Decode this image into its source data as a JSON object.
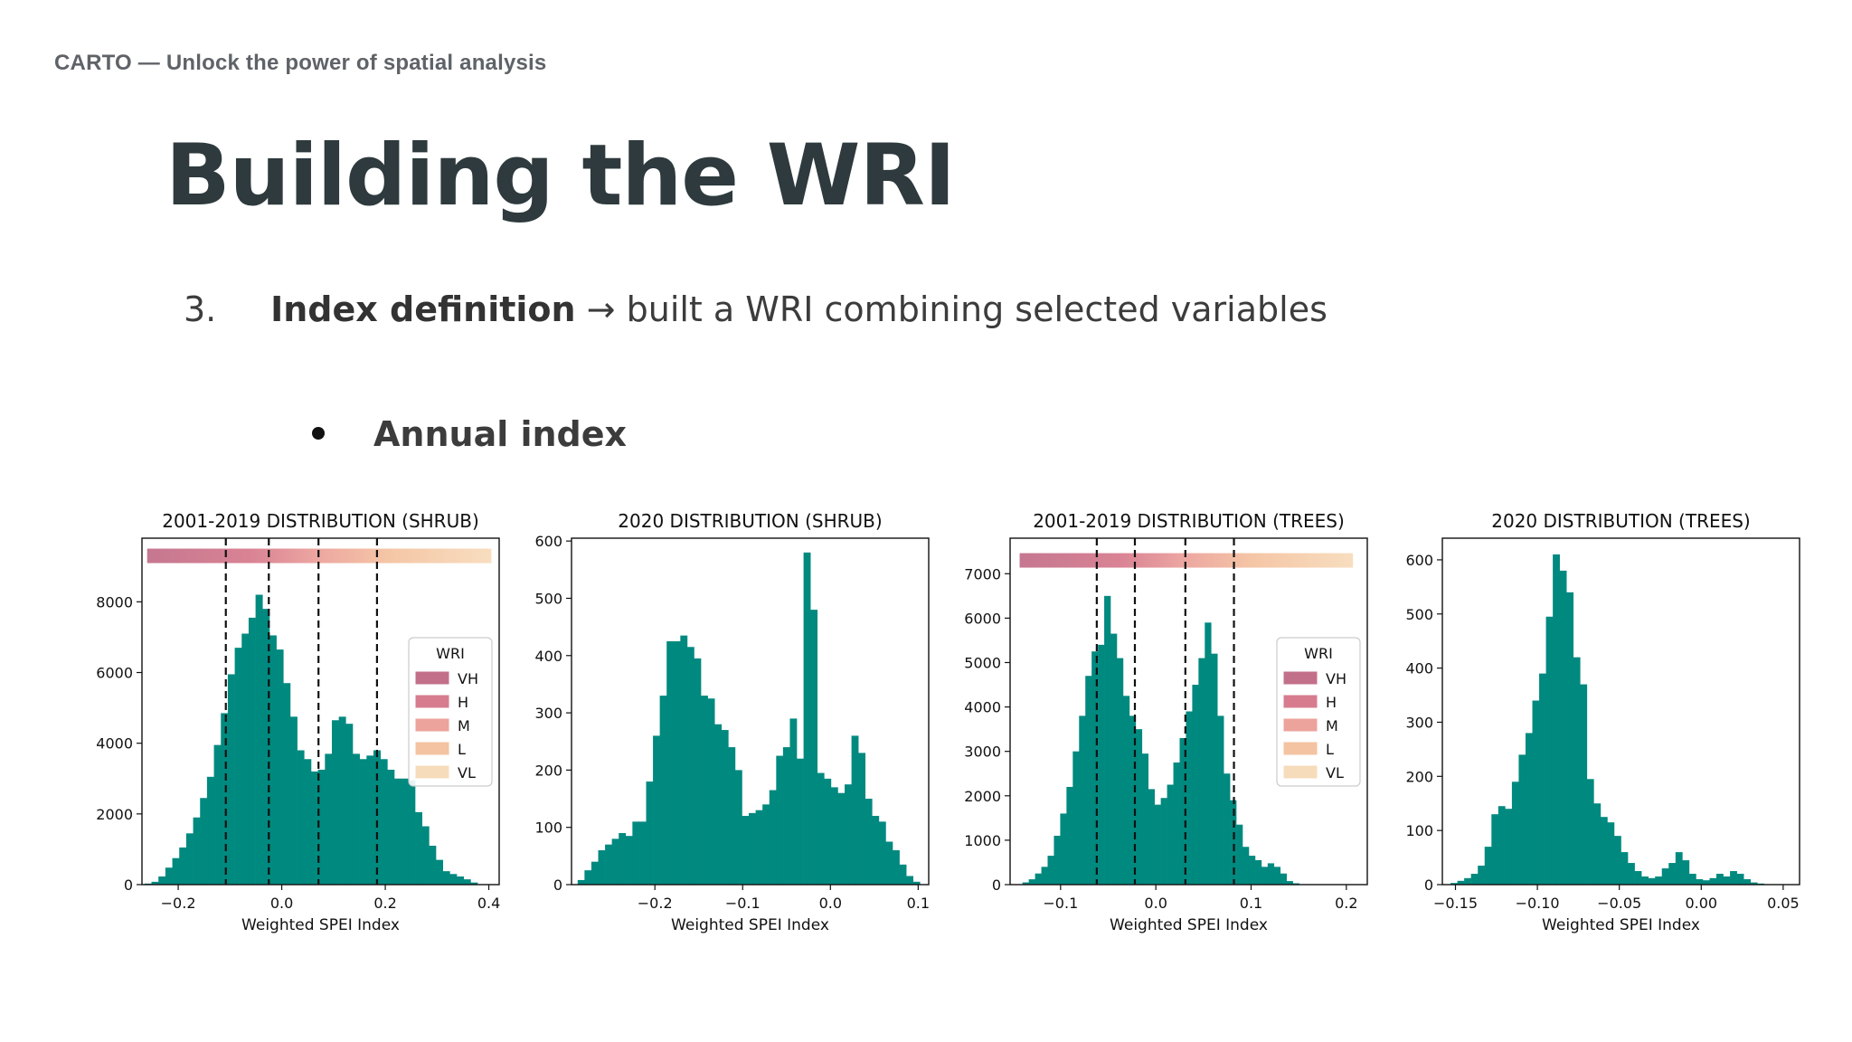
{
  "header": "CARTO — Unlock the power of spatial analysis",
  "slide": {
    "title": "Building the WRI",
    "item_number": "3.",
    "item_bold": "Index definition",
    "item_arrow": "→",
    "item_text": "built a WRI combining selected variables",
    "bullet": "Annual index"
  },
  "colors": {
    "bar": "#00897f",
    "VH": "#c2708a",
    "H": "#d77c8f",
    "M": "#eca39c",
    "L": "#f4c3a1",
    "VL": "#f7dcbc"
  },
  "chart_data": [
    {
      "type": "bar",
      "title": "2001-2019 DISTRIBUTION (SHRUB)",
      "xlabel": "Weighted SPEI Index",
      "ylabel": "",
      "xlim": [
        -0.27,
        0.42
      ],
      "ylim": [
        0,
        9800
      ],
      "xticks": [
        -0.2,
        0.0,
        0.2,
        0.4
      ],
      "xtick_labels": [
        "−0.2",
        "0.0",
        "0.2",
        "0.4"
      ],
      "yticks": [
        0,
        2000,
        4000,
        6000,
        8000
      ],
      "ytick_labels": [
        "0",
        "2000",
        "4000",
        "6000",
        "8000"
      ],
      "bin_start": -0.265,
      "bin_width": 0.0134,
      "values": [
        30,
        80,
        230,
        480,
        750,
        1050,
        1450,
        1900,
        2450,
        3050,
        3950,
        4850,
        5950,
        6700,
        7100,
        7550,
        8200,
        7800,
        7050,
        6650,
        5700,
        4750,
        3800,
        3550,
        3200,
        3250,
        3700,
        4650,
        4750,
        4550,
        3700,
        3550,
        3650,
        3800,
        3550,
        3250,
        3000,
        3000,
        2950,
        2050,
        1650,
        1100,
        700,
        380,
        300,
        230,
        150,
        60
      ],
      "cutoffs": [
        -0.108,
        -0.025,
        0.071,
        0.184
      ],
      "risk_band": {
        "x0": -0.26,
        "x1": 0.405,
        "y": 9300
      },
      "legend": {
        "title": "WRI",
        "entries": [
          "VH",
          "H",
          "M",
          "L",
          "VL"
        ],
        "position": "right"
      }
    },
    {
      "type": "bar",
      "title": "2020 DISTRIBUTION (SHRUB)",
      "xlabel": "Weighted SPEI Index",
      "ylabel": "",
      "xlim": [
        -0.295,
        0.112
      ],
      "ylim": [
        0,
        605
      ],
      "xticks": [
        -0.2,
        -0.1,
        0.0,
        0.1
      ],
      "xtick_labels": [
        "−0.2",
        "−0.1",
        "0.0",
        "0.1"
      ],
      "yticks": [
        0,
        100,
        200,
        300,
        400,
        500,
        600
      ],
      "ytick_labels": [
        "0",
        "100",
        "200",
        "300",
        "400",
        "500",
        "600"
      ],
      "bin_start": -0.288,
      "bin_width": 0.0078,
      "values": [
        8,
        25,
        40,
        60,
        70,
        80,
        90,
        85,
        110,
        110,
        180,
        260,
        330,
        425,
        425,
        435,
        415,
        395,
        330,
        325,
        280,
        270,
        240,
        200,
        120,
        125,
        130,
        140,
        165,
        225,
        240,
        290,
        220,
        580,
        480,
        195,
        185,
        170,
        160,
        175,
        260,
        230,
        150,
        120,
        110,
        75,
        60,
        35,
        15,
        5
      ],
      "cutoffs": [],
      "risk_band": null,
      "legend": null
    },
    {
      "type": "bar",
      "title": "2001-2019 DISTRIBUTION (TREES)",
      "xlabel": "Weighted SPEI Index",
      "ylabel": "",
      "xlim": [
        -0.153,
        0.222
      ],
      "ylim": [
        0,
        7800
      ],
      "xticks": [
        -0.1,
        0.0,
        0.1,
        0.2
      ],
      "xtick_labels": [
        "−0.1",
        "0.0",
        "0.1",
        "0.2"
      ],
      "yticks": [
        0,
        1000,
        2000,
        3000,
        4000,
        5000,
        6000,
        7000
      ],
      "ytick_labels": [
        "0",
        "1000",
        "2000",
        "3000",
        "4000",
        "5000",
        "6000",
        "7000"
      ],
      "bin_start": -0.14,
      "bin_width": 0.0066,
      "values": [
        50,
        120,
        250,
        400,
        650,
        1100,
        1600,
        2200,
        3000,
        3800,
        4700,
        5250,
        5400,
        6500,
        5650,
        5100,
        4250,
        3800,
        3500,
        2950,
        2150,
        1800,
        1950,
        2250,
        2750,
        3300,
        3900,
        4500,
        5100,
        5900,
        5200,
        3800,
        2500,
        1900,
        1350,
        850,
        650,
        550,
        400,
        480,
        400,
        250,
        80,
        30
      ],
      "cutoffs": [
        -0.062,
        -0.022,
        0.031,
        0.082
      ],
      "risk_band": {
        "x0": -0.143,
        "x1": 0.207,
        "y": 7300
      },
      "legend": {
        "title": "WRI",
        "entries": [
          "VH",
          "H",
          "M",
          "L",
          "VL"
        ],
        "position": "right"
      }
    },
    {
      "type": "bar",
      "title": "2020 DISTRIBUTION (TREES)",
      "xlabel": "Weighted SPEI Index",
      "ylabel": "",
      "xlim": [
        -0.158,
        0.06
      ],
      "ylim": [
        0,
        640
      ],
      "xticks": [
        -0.15,
        -0.1,
        -0.05,
        0.0,
        0.05
      ],
      "xtick_labels": [
        "−0.15",
        "−0.10",
        "−0.05",
        "0.00",
        "0.05"
      ],
      "yticks": [
        0,
        100,
        200,
        300,
        400,
        500,
        600
      ],
      "ytick_labels": [
        "0",
        "100",
        "200",
        "300",
        "400",
        "500",
        "600"
      ],
      "bin_start": -0.153,
      "bin_width": 0.00416,
      "values": [
        3,
        7,
        12,
        20,
        35,
        70,
        130,
        145,
        140,
        190,
        240,
        280,
        340,
        390,
        495,
        610,
        580,
        540,
        420,
        370,
        195,
        150,
        125,
        115,
        90,
        60,
        40,
        25,
        15,
        12,
        15,
        30,
        40,
        60,
        45,
        20,
        10,
        8,
        12,
        20,
        15,
        25,
        20,
        10,
        4,
        2
      ],
      "cutoffs": [],
      "risk_band": null,
      "legend": null
    }
  ]
}
